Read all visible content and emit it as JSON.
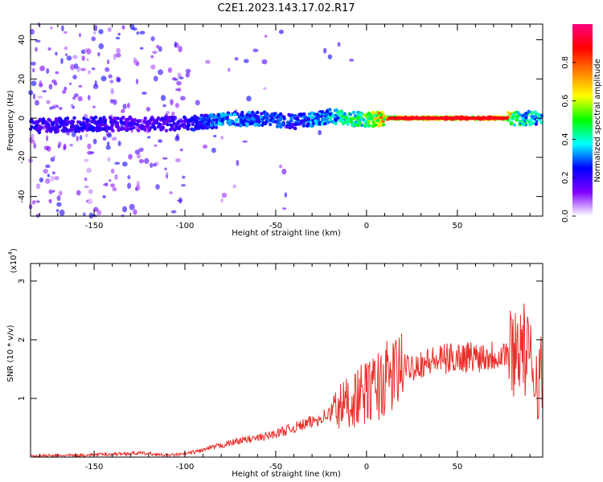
{
  "title": "C2E1.2023.143.17.02.R17",
  "chart_data": [
    {
      "type": "heatmap",
      "xlabel": "Height of straight line (km)",
      "ylabel": "Frequency (Hz)",
      "xlim": [
        -185,
        97
      ],
      "ylim": [
        -50,
        48
      ],
      "xticks": [
        -150,
        -100,
        -50,
        0,
        50
      ],
      "yticks": [
        -40,
        -20,
        0,
        20,
        40
      ],
      "colorbar": {
        "label": "Normalized spectral amplitude",
        "range": [
          0,
          1
        ],
        "ticks": [
          "0.0",
          "0.2",
          "0.4",
          "0.6",
          "0.8"
        ],
        "colors": [
          "#ffffff",
          "#8000ff",
          "#0000ff",
          "#00ffff",
          "#00ff00",
          "#ffff00",
          "#ff8000",
          "#ff0000",
          "#ff0080"
        ]
      },
      "ridge": {
        "x": [
          -180,
          -150,
          -120,
          -100,
          -80,
          -60,
          -40,
          -20,
          -10,
          0,
          10,
          50,
          75,
          85,
          95
        ],
        "freq": [
          -4,
          -3,
          -3,
          -3,
          -1,
          0,
          -2,
          1,
          0,
          -1,
          0,
          0,
          0,
          0,
          0
        ],
        "amplitude": [
          0.25,
          0.25,
          0.22,
          0.25,
          0.38,
          0.35,
          0.32,
          0.42,
          0.55,
          0.6,
          0.85,
          0.92,
          0.9,
          0.5,
          0.45
        ]
      }
    },
    {
      "type": "line",
      "xlabel": "Height of straight line (km)",
      "ylabel": "SNR (10 * v/v)",
      "y_multiplier_label": "(x10",
      "y_multiplier_exp": "4",
      "y_multiplier_close": ")",
      "xlim": [
        -185,
        97
      ],
      "ylim": [
        0,
        3.3
      ],
      "xticks": [
        -150,
        -100,
        -50,
        0,
        50
      ],
      "yticks": [
        1,
        2,
        3
      ],
      "color": "#e8302a",
      "series": [
        {
          "x": [
            -185,
            -160,
            -140,
            -125,
            -110,
            -100,
            -90,
            -80,
            -70,
            -60,
            -50,
            -40,
            -30,
            -20,
            -10,
            0,
            10,
            20,
            30,
            40,
            50,
            60,
            70,
            80,
            85,
            90,
            97
          ],
          "y": [
            0.02,
            0.03,
            0.05,
            0.07,
            0.03,
            0.05,
            0.12,
            0.2,
            0.28,
            0.32,
            0.4,
            0.5,
            0.6,
            0.75,
            0.95,
            1.1,
            1.3,
            1.5,
            1.6,
            1.65,
            1.7,
            1.72,
            1.74,
            1.8,
            1.95,
            1.6,
            1.3
          ]
        }
      ]
    }
  ]
}
